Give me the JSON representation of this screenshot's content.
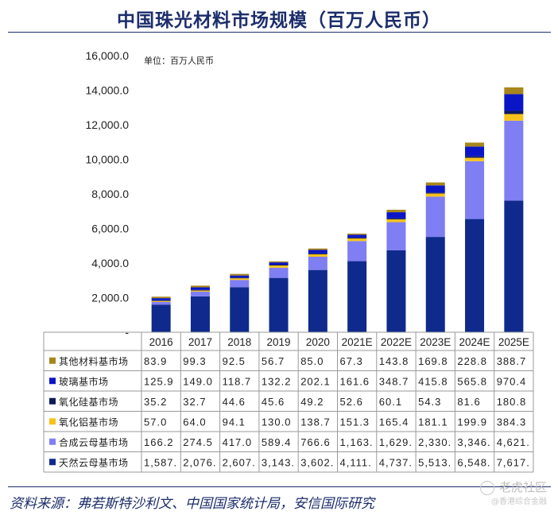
{
  "title": "中国珠光材料市场规模（百万人民币）",
  "unit_label": "单位：百万人民币",
  "source": "资料来源：弗若斯特沙利文、中国国家统计局，安信国际研究",
  "watermark": {
    "main": "老虎社区",
    "sub": "@香港综合金融"
  },
  "colors": {
    "natural_mica": "#0f2a8c",
    "synthetic_mica": "#7f7ef2",
    "alumina": "#f7c21b",
    "silica": "#0e1a5c",
    "glass": "#0a16c6",
    "other": "#a7861c"
  },
  "chart_data": {
    "type": "bar",
    "stacked": true,
    "title": "中国珠光材料市场规模（百万人民币）",
    "ylabel": "单位：百万人民币",
    "ylim": [
      0,
      16000
    ],
    "yticks": [
      "-",
      "2,000.0",
      "4,000.0",
      "6,000.0",
      "8,000.0",
      "10,000.0",
      "12,000.0",
      "14,000.0",
      "16,000.0"
    ],
    "categories": [
      "2016",
      "2017",
      "2018",
      "2019",
      "2020",
      "2021E",
      "2022E",
      "2023E",
      "2024E",
      "2025E"
    ],
    "series": [
      {
        "key": "other",
        "name": "其他材料基市场",
        "values": [
          83.9,
          99.3,
          92.5,
          56.7,
          85.0,
          67.3,
          143.8,
          169.8,
          228.8,
          388.7
        ],
        "labels": [
          "83.9",
          "99.3",
          "92.5",
          "56.7",
          "85.0",
          "67.3",
          "143.8",
          "169.8",
          "228.8",
          "388.7"
        ]
      },
      {
        "key": "glass",
        "name": "玻璃基市场",
        "values": [
          125.9,
          149.0,
          118.7,
          132.2,
          202.1,
          161.6,
          348.7,
          415.8,
          565.8,
          970.4
        ],
        "labels": [
          "125.9",
          "149.0",
          "118.7",
          "132.2",
          "202.1",
          "161.6",
          "348.7",
          "415.8",
          "565.8",
          "970.4"
        ]
      },
      {
        "key": "silica",
        "name": "氧化硅基市场",
        "values": [
          35.2,
          32.7,
          44.6,
          45.6,
          49.2,
          52.6,
          60.1,
          54.3,
          81.6,
          180.8
        ],
        "labels": [
          "35.2",
          "32.7",
          "44.6",
          "45.6",
          "49.2",
          "52.6",
          "60.1",
          "54.3",
          "81.6",
          "180.8"
        ]
      },
      {
        "key": "alumina",
        "name": "氧化铝基市场",
        "values": [
          57.0,
          64.0,
          94.1,
          130.0,
          138.7,
          151.3,
          165.4,
          181.1,
          199.9,
          384.3
        ],
        "labels": [
          "57.0",
          "64.0",
          "94.1",
          "130.0",
          "138.7",
          "151.3",
          "165.4",
          "181.1",
          "199.9",
          "384.3"
        ]
      },
      {
        "key": "synthetic_mica",
        "name": "合成云母基市场",
        "values": [
          166.2,
          274.5,
          417.0,
          589.4,
          766.6,
          1163,
          1629,
          2330,
          3346,
          4621
        ],
        "labels": [
          "166.2",
          "274.5",
          "417.0",
          "589.4",
          "766.6",
          "1,163.",
          "1,629.",
          "2,330.",
          "3,346.",
          "4,621."
        ]
      },
      {
        "key": "natural_mica",
        "name": "天然云母基市场",
        "values": [
          1587,
          2076,
          2607,
          3143,
          3602,
          4111,
          4737,
          5513,
          6548,
          7617
        ],
        "labels": [
          "1,587.",
          "2,076.",
          "2,607.",
          "3,143.",
          "3,602.",
          "4,111.",
          "4,737.",
          "5,513.",
          "6,548.",
          "7,617."
        ]
      }
    ],
    "stack_order": [
      "natural_mica",
      "synthetic_mica",
      "alumina",
      "silica",
      "glass",
      "other"
    ],
    "legend": "table-below"
  }
}
